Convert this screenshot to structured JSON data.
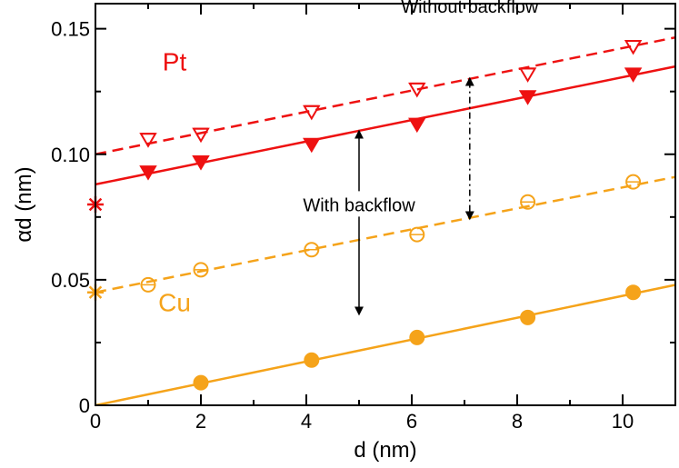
{
  "chart_data": {
    "type": "scatter",
    "xlabel": "d (nm)",
    "ylabel": "αd (nm)",
    "xlim": [
      0,
      11
    ],
    "ylim": [
      0,
      0.16
    ],
    "xticks": [
      0,
      2,
      4,
      6,
      8,
      10
    ],
    "xtick_labels": [
      "0",
      "2",
      "4",
      "6",
      "8",
      "10"
    ],
    "yticks": [
      0,
      0.05,
      0.1,
      0.15
    ],
    "ytick_labels": [
      "0",
      "0.05",
      "0.10",
      "0.15"
    ],
    "grid": false,
    "colors": {
      "pt": "#ee1111",
      "cu": "#f5a31a",
      "text": "#000000"
    },
    "series": [
      {
        "key": "pt_without",
        "color": "#ee1111",
        "marker": "triangle-down-open",
        "x": [
          1.0,
          2.0,
          4.1,
          6.1,
          8.2,
          10.2
        ],
        "y": [
          0.106,
          0.108,
          0.117,
          0.126,
          0.132,
          0.143
        ],
        "fit": {
          "style": "dashed",
          "intercept": 0.1,
          "slope": 0.00423
        }
      },
      {
        "key": "pt_with",
        "color": "#ee1111",
        "marker": "triangle-down-filled",
        "x": [
          1.0,
          2.0,
          4.1,
          6.1,
          8.2,
          10.2
        ],
        "y": [
          0.093,
          0.097,
          0.104,
          0.112,
          0.123,
          0.132
        ],
        "fit": {
          "style": "solid",
          "intercept": 0.088,
          "slope": 0.00427
        }
      },
      {
        "key": "cu_without",
        "color": "#f5a31a",
        "marker": "circle-open",
        "x": [
          1.0,
          2.0,
          4.1,
          6.1,
          8.2,
          10.2
        ],
        "y": [
          0.048,
          0.054,
          0.062,
          0.068,
          0.081,
          0.089
        ],
        "fit": {
          "style": "dashed",
          "intercept": 0.045,
          "slope": 0.00418
        }
      },
      {
        "key": "cu_with",
        "color": "#f5a31a",
        "marker": "circle-filled",
        "x": [
          2.0,
          4.1,
          6.1,
          8.2,
          10.2
        ],
        "y": [
          0.009,
          0.018,
          0.027,
          0.035,
          0.045
        ],
        "fit": {
          "style": "solid",
          "intercept": 0.0,
          "slope": 0.00436
        }
      }
    ],
    "asterisks": [
      {
        "color": "#ee1111",
        "x": 0,
        "y": 0.08
      },
      {
        "color": "#f5a31a",
        "x": 0,
        "y": 0.045
      }
    ],
    "labels": [
      {
        "text": "Pt",
        "x": 1.5,
        "y": 0.137,
        "color": "#ee1111"
      },
      {
        "text": "Cu",
        "x": 1.5,
        "y": 0.041,
        "color": "#f5a31a"
      }
    ],
    "annotations": [
      {
        "text": "With backflow",
        "x": 5.0,
        "y": 0.0795,
        "arrow_x": 5.0,
        "arrow_from": 0.108,
        "arrow_to": 0.0375,
        "arrow_style": "solid"
      },
      {
        "text": "Without backflow",
        "x": 7.1,
        "y": 0.1585,
        "arrow_x": 7.1,
        "arrow_from": 0.129,
        "arrow_to": 0.0755,
        "arrow_style": "dashdot"
      }
    ]
  }
}
